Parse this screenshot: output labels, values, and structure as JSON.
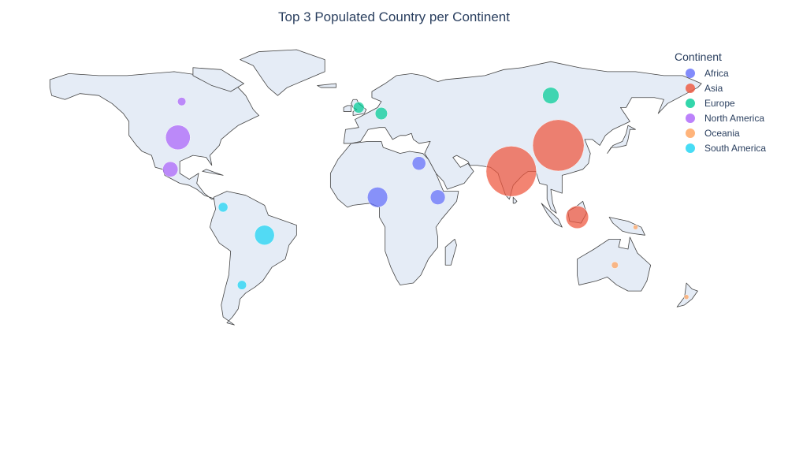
{
  "title": "Top 3 Populated Country per Continent",
  "legend": {
    "title": "Continent",
    "items": [
      {
        "label": "Africa",
        "color": "#636efa"
      },
      {
        "label": "Asia",
        "color": "#EF553B"
      },
      {
        "label": "Europe",
        "color": "#00cc96"
      },
      {
        "label": "North America",
        "color": "#ab63fa"
      },
      {
        "label": "Oceania",
        "color": "#FFA15A"
      },
      {
        "label": "South America",
        "color": "#19d3f3"
      }
    ]
  },
  "map": {
    "land_color": "#e5ecf6",
    "coast_color": "#444444",
    "projection": "equirectangular"
  },
  "chart_data": {
    "type": "scatter",
    "series": [
      {
        "name": "Africa",
        "points": [
          {
            "lon": 8,
            "lat": 9,
            "size": 220
          },
          {
            "lon": 40,
            "lat": 9,
            "size": 120
          },
          {
            "lon": 30,
            "lat": 26,
            "size": 100
          }
        ]
      },
      {
        "name": "Asia",
        "points": [
          {
            "lon": 104,
            "lat": 35,
            "size": 1440
          },
          {
            "lon": 79,
            "lat": 22,
            "size": 1380
          },
          {
            "lon": 114,
            "lat": -1,
            "size": 275
          }
        ]
      },
      {
        "name": "Europe",
        "points": [
          {
            "lon": 100,
            "lat": 60,
            "size": 145
          },
          {
            "lon": 10,
            "lat": 51,
            "size": 83
          },
          {
            "lon": -2,
            "lat": 54,
            "size": 67
          }
        ]
      },
      {
        "name": "North America",
        "points": [
          {
            "lon": -98,
            "lat": 39,
            "size": 330
          },
          {
            "lon": -102,
            "lat": 23,
            "size": 128
          },
          {
            "lon": -96,
            "lat": 57,
            "size": 38
          }
        ]
      },
      {
        "name": "Oceania",
        "points": [
          {
            "lon": 134,
            "lat": -25,
            "size": 25
          },
          {
            "lon": 145,
            "lat": -6,
            "size": 9
          },
          {
            "lon": 172,
            "lat": -41,
            "size": 5
          }
        ]
      },
      {
        "name": "South America",
        "points": [
          {
            "lon": -52,
            "lat": -10,
            "size": 212
          },
          {
            "lon": -74,
            "lat": 4,
            "size": 50
          },
          {
            "lon": -64,
            "lat": -35,
            "size": 45
          }
        ]
      }
    ]
  }
}
